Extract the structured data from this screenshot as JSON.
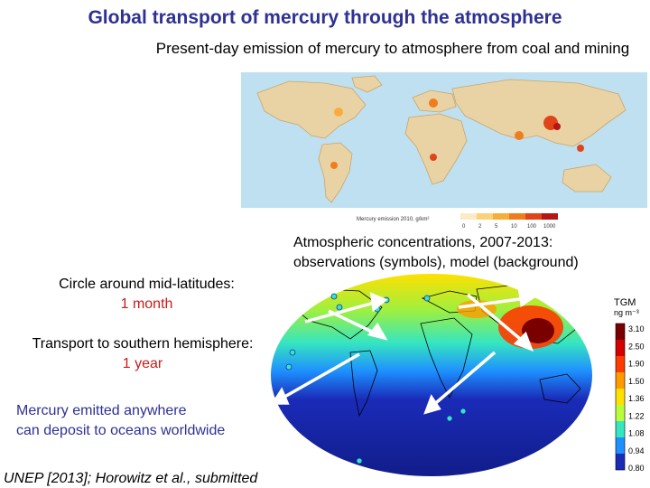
{
  "title": "Global transport of mercury through the atmosphere",
  "subtitle": "Present-day emission of mercury to atmosphere from coal and mining",
  "emission_map": {
    "legend_title": "Mercury emission 2010, g/km²",
    "legend_ticks": [
      "0",
      "2",
      "5",
      "10",
      "100",
      "1000"
    ],
    "legend_colors": [
      "#fde9c8",
      "#fbd27a",
      "#f7ad3c",
      "#f07c1e",
      "#e0451a",
      "#b51515"
    ]
  },
  "observation_caption": {
    "line1": "Atmospheric concentrations, 2007-2013:",
    "line2": "observations (symbols), model (background)"
  },
  "notes": {
    "circle_label": "Circle around mid-latitudes:",
    "circle_value": "1 month",
    "transport_label": "Transport to southern hemisphere:",
    "transport_value": "1 year",
    "deposit_line1": "Mercury emitted anywhere",
    "deposit_line2": "can deposit to oceans worldwide"
  },
  "tgm_colorbar": {
    "title": "TGM",
    "unit": "ng m⁻³",
    "ticks": [
      "3.10",
      "2.50",
      "1.90",
      "1.50",
      "1.36",
      "1.22",
      "1.08",
      "0.94",
      "0.80"
    ],
    "colors": [
      "#7a0000",
      "#d40000",
      "#ff3b00",
      "#ff9a00",
      "#ffe000",
      "#b8ff3a",
      "#36e6c0",
      "#1e90ff",
      "#1a2bb8"
    ]
  },
  "citation": "UNEP [2013]; Horowitz et al., submitted"
}
